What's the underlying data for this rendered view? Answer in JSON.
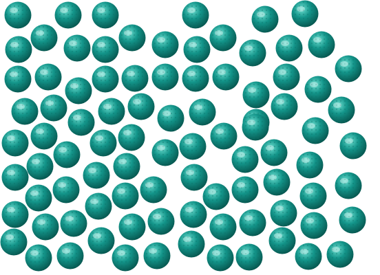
{
  "scene": {
    "subject": "golf balls",
    "ball_count": 99
  },
  "colors": {
    "background": "#ffffff",
    "ball_base": "#13958a",
    "ball_highlight": "#6fe0d2",
    "ball_shadow": "#06544d",
    "dimple": "#0b6f66"
  }
}
